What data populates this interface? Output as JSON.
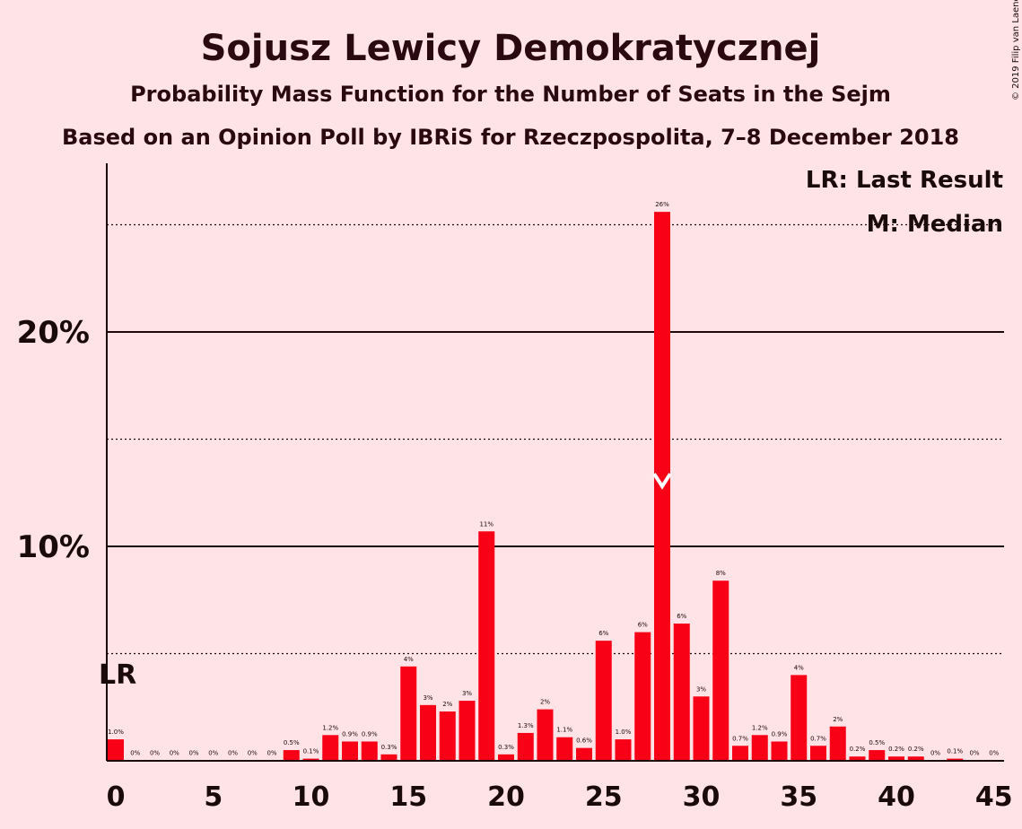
{
  "chart_data": {
    "type": "bar",
    "title": "Sojusz Lewicy Demokratycznej",
    "subtitle": "Probability Mass Function for the Number of Seats in the Sejm",
    "subtitle2": "Based on an Opinion Poll by IBRiS for Rzeczpospolita, 7–8 December 2018",
    "copyright": "© 2019 Filip van Laenen",
    "legend": {
      "placement": "top-right",
      "items": [
        "LR: Last Result",
        "M: Median"
      ]
    },
    "last_result": {
      "seats": 0,
      "label": "LR"
    },
    "median": {
      "seats": 28
    },
    "xlim": [
      0,
      45
    ],
    "ylim": [
      0,
      27.5
    ],
    "x_ticks": [
      0,
      5,
      10,
      15,
      20,
      25,
      30,
      35,
      40,
      45
    ],
    "x_tick_labels": [
      "0",
      "5",
      "10",
      "15",
      "20",
      "25",
      "30",
      "35",
      "40",
      "45"
    ],
    "y_ticks_major": [
      10,
      20
    ],
    "y_tick_labels": [
      "10%",
      "20%"
    ],
    "y_gridlines_dotted": [
      5,
      15,
      25
    ],
    "grid": true,
    "bar_color": "#F80015",
    "seats": [
      0,
      1,
      2,
      3,
      4,
      5,
      6,
      7,
      8,
      9,
      10,
      11,
      12,
      13,
      14,
      15,
      16,
      17,
      18,
      19,
      20,
      21,
      22,
      23,
      24,
      25,
      26,
      27,
      28,
      29,
      30,
      31,
      32,
      33,
      34,
      35,
      36,
      37,
      38,
      39,
      40,
      41,
      42,
      43,
      44,
      45
    ],
    "values": [
      1.0,
      0.02,
      0.02,
      0.02,
      0.02,
      0.02,
      0.02,
      0.02,
      0.02,
      0.5,
      0.1,
      1.2,
      0.9,
      0.9,
      0.3,
      4.4,
      2.6,
      2.3,
      2.8,
      10.7,
      0.3,
      1.3,
      2.4,
      1.1,
      0.6,
      5.6,
      1.0,
      6.0,
      25.6,
      6.4,
      3.0,
      8.4,
      0.7,
      1.2,
      0.9,
      4.0,
      0.7,
      1.6,
      0.2,
      0.5,
      0.2,
      0.2,
      0.02,
      0.1,
      0.02,
      0.02
    ],
    "labels": [
      "1.0%",
      "0%",
      "0%",
      "0%",
      "0%",
      "0%",
      "0%",
      "0%",
      "0%",
      "0.5%",
      "0.1%",
      "1.2%",
      "0.9%",
      "0.9%",
      "0.3%",
      "4%",
      "3%",
      "2%",
      "3%",
      "11%",
      "0.3%",
      "1.3%",
      "2%",
      "1.1%",
      "0.6%",
      "6%",
      "1.0%",
      "6%",
      "26%",
      "6%",
      "3%",
      "8%",
      "0.7%",
      "1.2%",
      "0.9%",
      "4%",
      "0.7%",
      "2%",
      "0.2%",
      "0.5%",
      "0.2%",
      "0.2%",
      "0%",
      "0.1%",
      "0%",
      "0%"
    ]
  }
}
